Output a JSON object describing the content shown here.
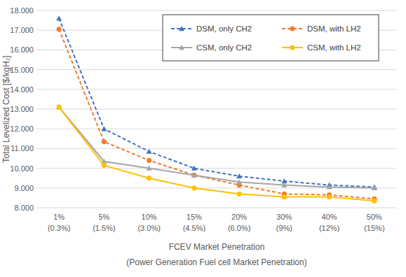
{
  "chart_data": {
    "type": "line",
    "y_label": "Total Levelized Cost [$/kgH₂]",
    "x_label": "FCEV Market Penetration\n(Power Generation Fuel cell Market Penetration)",
    "categories": [
      "1%\n(0.3%)",
      "5%\n(1.5%)",
      "10%\n(3.0%)",
      "15%\n(4.5%)",
      "20%\n(6.0%)",
      "30%\n(9%)",
      "40%\n(12%)",
      "50%\n(15%)"
    ],
    "series": [
      {
        "name": "DSM, only CH2",
        "color": "#4472c4",
        "marker": "triangle",
        "line_style": "dashed",
        "values": [
          17.6,
          12.0,
          10.85,
          10.0,
          9.6,
          9.35,
          9.15,
          9.05
        ]
      },
      {
        "name": "DSM, with LH2",
        "color": "#ed7d31",
        "marker": "circle",
        "line_style": "dashed",
        "values": [
          17.05,
          11.35,
          10.4,
          9.65,
          9.15,
          8.7,
          8.65,
          8.45
        ]
      },
      {
        "name": "CSM, only CH2",
        "color": "#a5a5a5",
        "marker": "triangle",
        "line_style": "solid",
        "values": [
          13.1,
          10.35,
          10.0,
          9.65,
          9.3,
          9.15,
          9.05,
          9.0
        ]
      },
      {
        "name": "CSM, with LH2",
        "color": "#ffc000",
        "marker": "circle",
        "line_style": "solid",
        "values": [
          13.1,
          10.15,
          9.5,
          9.0,
          8.7,
          8.55,
          8.55,
          8.35
        ]
      }
    ],
    "ylim": [
      8,
      18
    ],
    "yticks": [
      {
        "value": 8,
        "label": "8.000"
      },
      {
        "value": 9,
        "label": "9.000"
      },
      {
        "value": 10,
        "label": "10.000"
      },
      {
        "value": 11,
        "label": "11.000"
      },
      {
        "value": 12,
        "label": "12.000"
      },
      {
        "value": 13,
        "label": "13.000"
      },
      {
        "value": 14,
        "label": "14.000"
      },
      {
        "value": 15,
        "label": "15.000"
      },
      {
        "value": 16,
        "label": "16.000"
      },
      {
        "value": 17,
        "label": "17.000"
      },
      {
        "value": 18,
        "label": "18.000"
      }
    ],
    "grid": true,
    "legend": "top-right"
  }
}
